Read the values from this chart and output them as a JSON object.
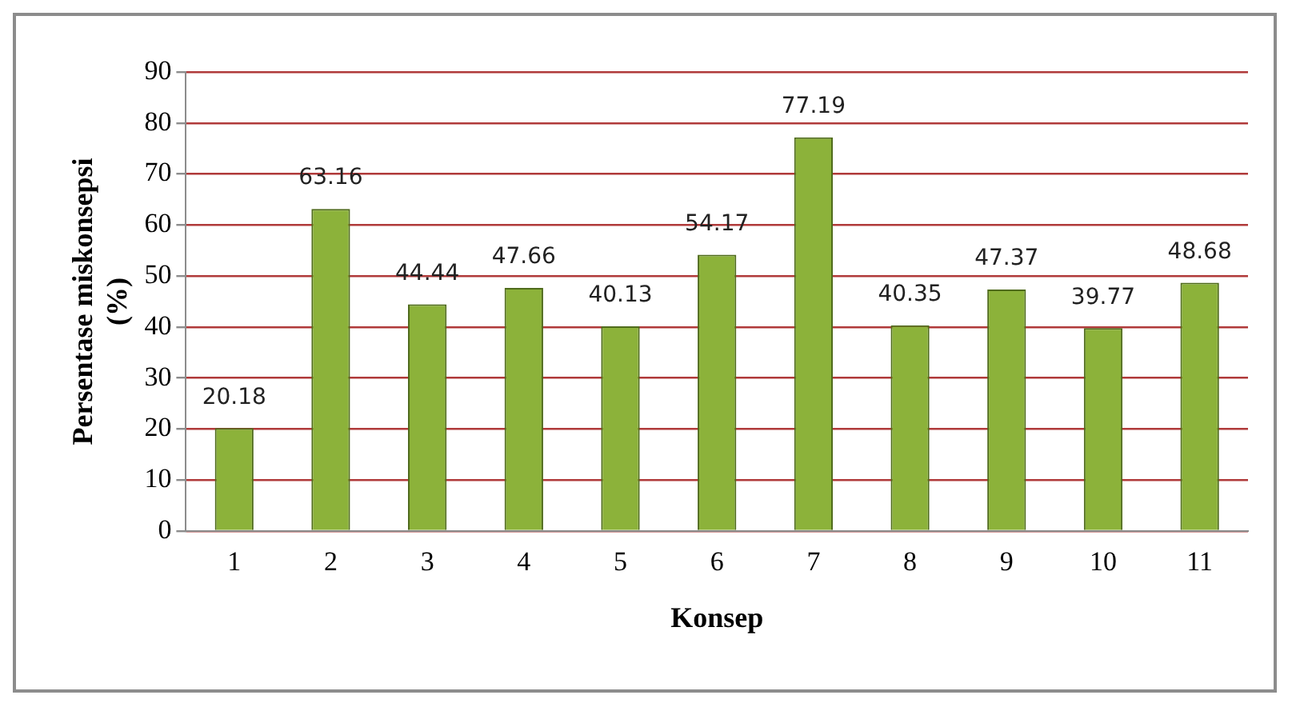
{
  "chart_data": {
    "type": "bar",
    "xlabel": "Konsep",
    "ylabel": "Persentase miskonsepsi (%)",
    "categories": [
      "1",
      "2",
      "3",
      "4",
      "5",
      "6",
      "7",
      "8",
      "9",
      "10",
      "11"
    ],
    "values": [
      20.18,
      63.16,
      44.44,
      47.66,
      40.13,
      54.17,
      77.19,
      40.35,
      47.37,
      39.77,
      48.68
    ],
    "color": "#8cb23a",
    "ylim": [
      0,
      90
    ],
    "yticks": [
      0,
      10,
      20,
      30,
      40,
      50,
      60,
      70,
      80,
      90
    ],
    "grid": "y",
    "data_labels": true,
    "legend": false
  }
}
